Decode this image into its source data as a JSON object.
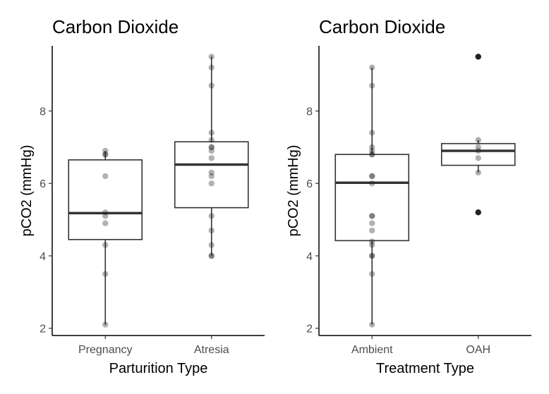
{
  "chart_data": [
    {
      "type": "box",
      "title": "Carbon Dioxide",
      "xlabel": "Parturition Type",
      "ylabel": "pCO2 (mmHg)",
      "ylim": [
        1.8,
        9.8
      ],
      "yticks": [
        2,
        4,
        6,
        8
      ],
      "grid": false,
      "categories": [
        "Pregnancy",
        "Atresia"
      ],
      "boxes": [
        {
          "category": "Pregnancy",
          "whisker_low": 2.1,
          "q1": 4.45,
          "median": 5.18,
          "q3": 6.65,
          "whisker_high": 6.9,
          "points": [
            2.1,
            3.5,
            4.3,
            4.9,
            5.1,
            5.2,
            6.2,
            6.8,
            6.8,
            6.9
          ]
        },
        {
          "category": "Atresia",
          "whisker_low": 4.0,
          "q1": 5.33,
          "median": 6.52,
          "q3": 7.15,
          "whisker_high": 9.5,
          "points": [
            4.0,
            4.0,
            4.3,
            4.7,
            5.1,
            6.0,
            6.2,
            6.3,
            6.7,
            6.9,
            7.0,
            7.0,
            7.2,
            7.4,
            8.7,
            9.2,
            9.5
          ]
        }
      ]
    },
    {
      "type": "box",
      "title": "Carbon Dioxide",
      "xlabel": "Treatment Type",
      "ylabel": "pCO2 (mmHg)",
      "ylim": [
        1.8,
        9.8
      ],
      "yticks": [
        2,
        4,
        6,
        8
      ],
      "grid": false,
      "categories": [
        "Ambient",
        "OAH"
      ],
      "boxes": [
        {
          "category": "Ambient",
          "whisker_low": 2.1,
          "q1": 4.42,
          "median": 6.02,
          "q3": 6.8,
          "whisker_high": 9.2,
          "points": [
            2.1,
            3.5,
            4.0,
            4.0,
            4.3,
            4.4,
            4.7,
            4.9,
            5.1,
            5.1,
            6.0,
            6.2,
            6.2,
            6.8,
            6.8,
            6.9,
            7.0,
            7.4,
            8.7,
            9.2
          ]
        },
        {
          "category": "OAH",
          "whisker_low": 6.3,
          "q1": 6.5,
          "median": 6.9,
          "q3": 7.1,
          "whisker_high": 7.2,
          "outliers": [
            5.2,
            9.5
          ],
          "points": [
            5.2,
            6.3,
            6.7,
            6.9,
            7.0,
            7.2,
            9.5
          ]
        }
      ]
    }
  ]
}
